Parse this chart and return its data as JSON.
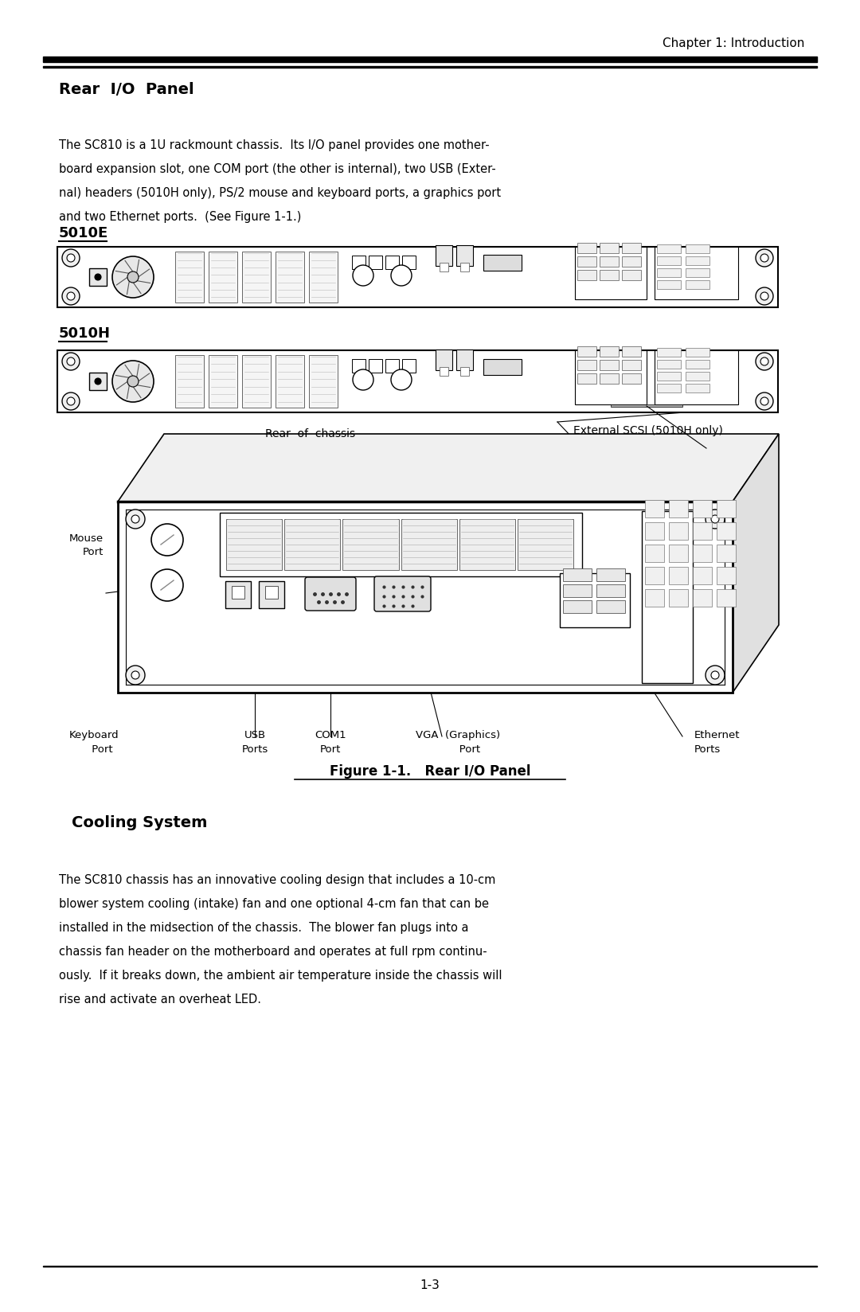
{
  "page_title": "Chapter 1: Introduction",
  "section1_title": "Rear  I/O  Panel",
  "body_line1": "The SC810 is a 1U rackmount chassis.  Its I/O panel provides one mother-",
  "body_line2": "board expansion slot, one COM port (the other is internal), two USB (Exter-",
  "body_line3": "nal) headers (5010H only), PS/2 mouse and keyboard ports, a graphics port",
  "body_line4": "and two Ethernet ports.  (See Figure 1-1.)",
  "label_5010E": "5010E",
  "label_5010H": "5010H",
  "fig_caption": "Figure 1-1.   Rear I/O Panel",
  "section2_title": "Cooling System",
  "cooling_line1": "The SC810 chassis has an innovative cooling design that includes a 10-cm",
  "cooling_line2": "blower system cooling (intake) fan and one optional 4-cm fan that can be",
  "cooling_line3": "installed in the midsection of the chassis.  The blower fan plugs into a",
  "cooling_line4": "chassis fan header on the motherboard and operates at full rpm continu-",
  "cooling_line5": "ously.  If it breaks down, the ambient air temperature inside the chassis will",
  "cooling_line6": "rise and activate an overheat LED.",
  "page_number": "1-3",
  "ann_rear_of_chassis": "Rear  of  chassis",
  "ann_external_scsi": "External SCSI (5010H only)",
  "ann_mouse_port_1": "Mouse",
  "ann_mouse_port_2": "Port",
  "ann_keyboard_1": "Keyboard",
  "ann_keyboard_2": "     Port",
  "ann_usb_1": "USB",
  "ann_usb_2": "Ports",
  "ann_com1_1": "COM1",
  "ann_com1_2": "Port",
  "ann_vga_1": "VGA  (Graphics)",
  "ann_vga_2": "       Port",
  "ann_eth_1": "Ethernet",
  "ann_eth_2": "Ports",
  "bg_color": "#ffffff",
  "text_color": "#000000"
}
